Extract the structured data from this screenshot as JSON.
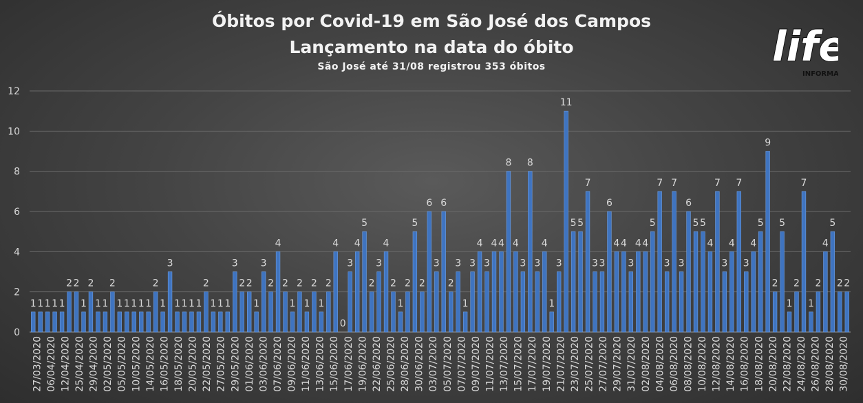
{
  "title": "Óbitos por Covid-19 em São José dos Campos",
  "subtitle": "Lançamento na data do óbito",
  "note": "São José até 31/08 registrou 353 óbitos",
  "logo": {
    "word": "life",
    "tag": "INFORMA"
  },
  "colors": {
    "bar": "#3f74c0",
    "bar_light": "#6f9ee0",
    "grid": "#6a6a6a",
    "text": "#d9d9d9"
  },
  "chart_data": {
    "type": "bar",
    "ylim": [
      0,
      12
    ],
    "yticks": [
      0,
      2,
      4,
      6,
      8,
      10,
      12
    ],
    "grid": true,
    "legend": "none",
    "x_labels": [
      "27/03/2020",
      "06/04/2020",
      "12/04/2020",
      "25/04/2020",
      "29/04/2020",
      "02/05/2020",
      "05/05/2020",
      "10/05/2020",
      "14/05/2020",
      "16/05/2020",
      "18/05/2020",
      "20/05/2020",
      "22/05/2020",
      "27/05/2020",
      "29/05/2020",
      "01/06/2020",
      "03/06/2020",
      "07/06/2020",
      "09/06/2020",
      "11/06/2020",
      "13/06/2020",
      "15/06/2020",
      "17/06/2020",
      "19/06/2020",
      "22/06/2020",
      "25/06/2020",
      "28/06/2020",
      "30/06/2020",
      "03/07/2020",
      "05/07/2020",
      "07/07/2020",
      "09/07/2020",
      "11/07/2020",
      "13/07/2020",
      "15/07/2020",
      "17/07/2020",
      "19/07/2020",
      "21/07/2020",
      "23/07/2020",
      "25/07/2020",
      "27/07/2020",
      "29/07/2020",
      "31/07/2020",
      "02/08/2020",
      "04/08/2020",
      "06/08/2020",
      "08/08/2020",
      "10/08/2020",
      "12/08/2020",
      "14/08/2020",
      "16/08/2020",
      "18/08/2020",
      "20/08/2020",
      "22/08/2020",
      "24/08/2020",
      "26/08/2020",
      "28/08/2020",
      "30/08/2020"
    ],
    "values": [
      1,
      1,
      1,
      1,
      1,
      2,
      2,
      1,
      2,
      1,
      1,
      2,
      1,
      1,
      1,
      1,
      1,
      2,
      1,
      3,
      1,
      1,
      1,
      1,
      2,
      1,
      1,
      1,
      3,
      2,
      2,
      1,
      3,
      2,
      4,
      2,
      1,
      2,
      1,
      2,
      1,
      2,
      4,
      0,
      3,
      4,
      5,
      2,
      3,
      4,
      2,
      1,
      2,
      5,
      2,
      6,
      3,
      6,
      2,
      3,
      1,
      3,
      4,
      3,
      4,
      4,
      8,
      4,
      3,
      8,
      3,
      4,
      1,
      3,
      11,
      5,
      5,
      7,
      3,
      3,
      6,
      4,
      4,
      3,
      4,
      4,
      5,
      7,
      3,
      7,
      3,
      6,
      5,
      5,
      4,
      7,
      3,
      4,
      7,
      3,
      4,
      5,
      9,
      2,
      5,
      1,
      2,
      7,
      1,
      2,
      4,
      5,
      2,
      2
    ]
  }
}
